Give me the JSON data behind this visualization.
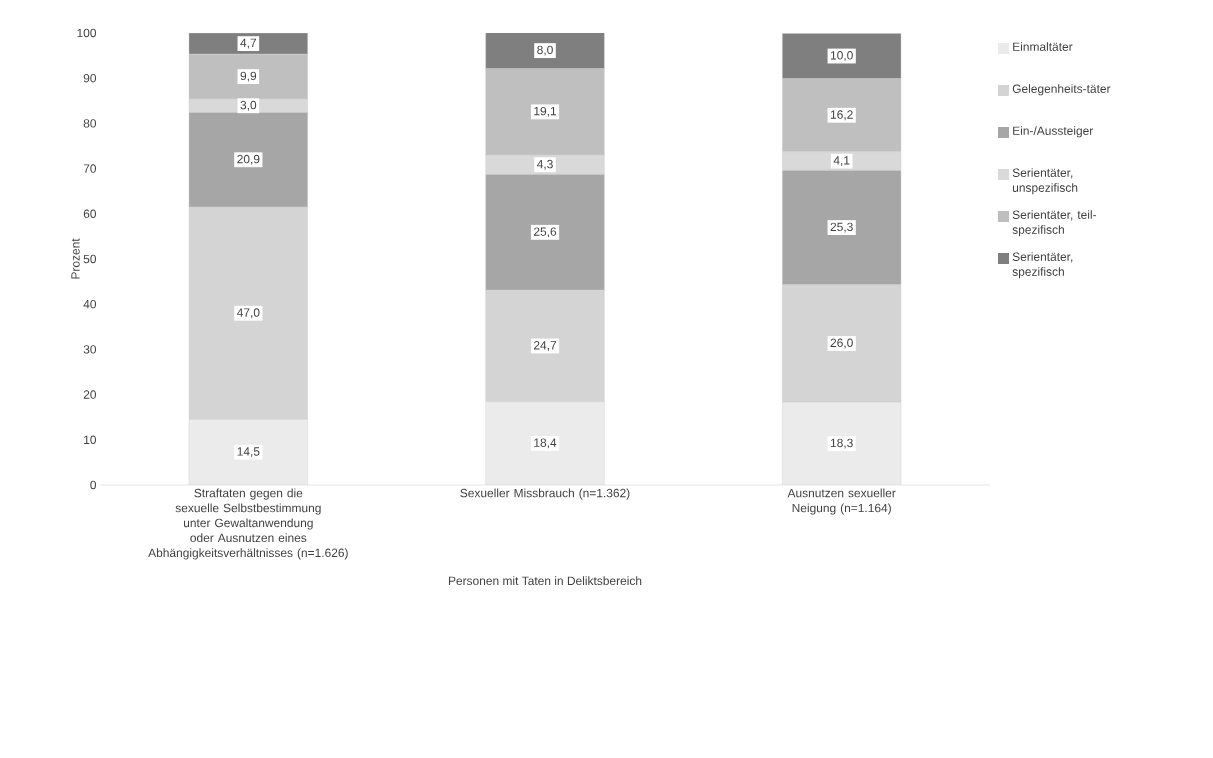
{
  "chart_data": {
    "type": "bar",
    "stacked": true,
    "xlabel": "Personen mit Taten in Deliktsbereich",
    "ylabel": "Prozent",
    "categories": [
      "Straftaten gegen die sexuelle Selbstbestimmung unter Gewaltanwendung oder Ausnutzen eines Abhängigkeitsverhältnisses (n=1.626)",
      "Sexueller Missbrauch (n=1.362)",
      "Ausnutzen sexueller Neigung (n=1.164)"
    ],
    "series": [
      {
        "name": "Einmaltäter",
        "color": "#ebebeb",
        "values": [
          14.5,
          18.4,
          18.3
        ],
        "value_labels": [
          "14,5",
          "18,4",
          "18,3"
        ]
      },
      {
        "name": "Gelegenheits-täter",
        "color": "#d4d4d4",
        "values": [
          47.0,
          24.7,
          26.0
        ],
        "value_labels": [
          "47,0",
          "24,7",
          "26,0"
        ]
      },
      {
        "name": "Ein-/Aussteiger",
        "color": "#a6a6a6",
        "values": [
          20.9,
          25.6,
          25.3
        ],
        "value_labels": [
          "20,9",
          "25,6",
          "25,3"
        ]
      },
      {
        "name": "Serientäter, unspezifisch",
        "color": "#d9d9d9",
        "values": [
          3.0,
          4.3,
          4.1
        ],
        "value_labels": [
          "3,0",
          "4,3",
          "4,1"
        ]
      },
      {
        "name": "Serientäter, teil-spezifisch",
        "color": "#bfbfbf",
        "values": [
          9.9,
          19.1,
          16.2
        ],
        "value_labels": [
          "9,9",
          "19,1",
          "16,2"
        ]
      },
      {
        "name": "Serientäter, spezifisch",
        "color": "#7f7f7f",
        "values": [
          4.7,
          8.0,
          10.0
        ],
        "value_labels": [
          "4,7",
          "8,0",
          "10,0"
        ]
      }
    ],
    "ylim": [
      0,
      100
    ],
    "yticks": [
      0,
      10,
      20,
      30,
      40,
      50,
      60,
      70,
      80,
      90,
      100
    ],
    "grid": false,
    "legend": "right"
  }
}
